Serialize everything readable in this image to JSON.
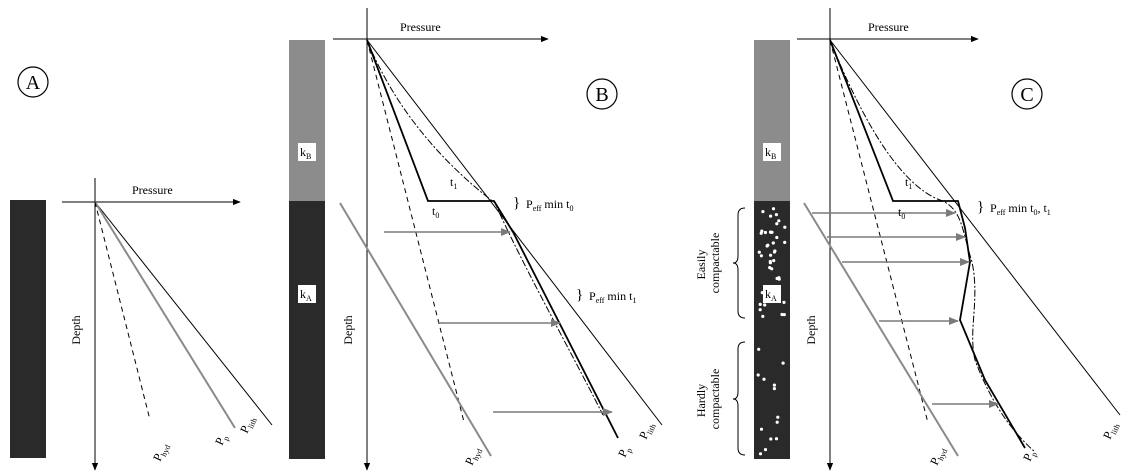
{
  "colors": {
    "dark_column": "#2a2a2a",
    "light_column": "#8c8c8c",
    "pp_line": "#8a8a8a",
    "arrow": "#7a7a7a",
    "black": "#000000"
  },
  "panels": {
    "A": {
      "label": "A",
      "x_axis": "Pressure",
      "y_axis": "Depth",
      "p_lith": {
        "main": "P",
        "sub": "lith"
      },
      "p_p": {
        "main": "P",
        "sub": "p"
      },
      "p_hyd": {
        "main": "P",
        "sub": "hyd"
      }
    },
    "B": {
      "label": "B",
      "x_axis": "Pressure",
      "y_axis": "Depth",
      "k_top": {
        "main": "k",
        "sub": "B"
      },
      "k_bottom": {
        "main": "k",
        "sub": "A"
      },
      "t0": {
        "main": "t",
        "sub": "0"
      },
      "t1": {
        "main": "t",
        "sub": "1"
      },
      "peff_t0": {
        "pre": "P",
        "sub": "eff",
        "post": " min t",
        "post_sub": "0"
      },
      "peff_t1": {
        "pre": "P",
        "sub": "eff",
        "post": " min t",
        "post_sub": "1"
      },
      "p_lith": {
        "main": "P",
        "sub": "lith"
      },
      "p_p": {
        "main": "P",
        "sub": "p"
      },
      "p_hyd": {
        "main": "P",
        "sub": "hyd"
      }
    },
    "C": {
      "label": "C",
      "x_axis": "Pressure",
      "y_axis": "Depth",
      "k_top": {
        "main": "k",
        "sub": "B"
      },
      "k_bottom": {
        "main": "k",
        "sub": "A"
      },
      "t0": {
        "main": "t",
        "sub": "0"
      },
      "t1": {
        "main": "t",
        "sub": "1"
      },
      "peff_t0t1": {
        "pre": "P",
        "sub": "eff",
        "post": " min t",
        "post_sub": "0",
        "tail": ", t",
        "tail_sub": "1"
      },
      "easily": [
        "Easily",
        "compactable"
      ],
      "hardly": [
        "Hardly",
        "compactable"
      ],
      "p_lith": {
        "main": "P",
        "sub": "lith"
      },
      "p_p": {
        "main": "P",
        "sub": "p"
      },
      "p_hyd": {
        "main": "P",
        "sub": "hyd"
      }
    }
  }
}
